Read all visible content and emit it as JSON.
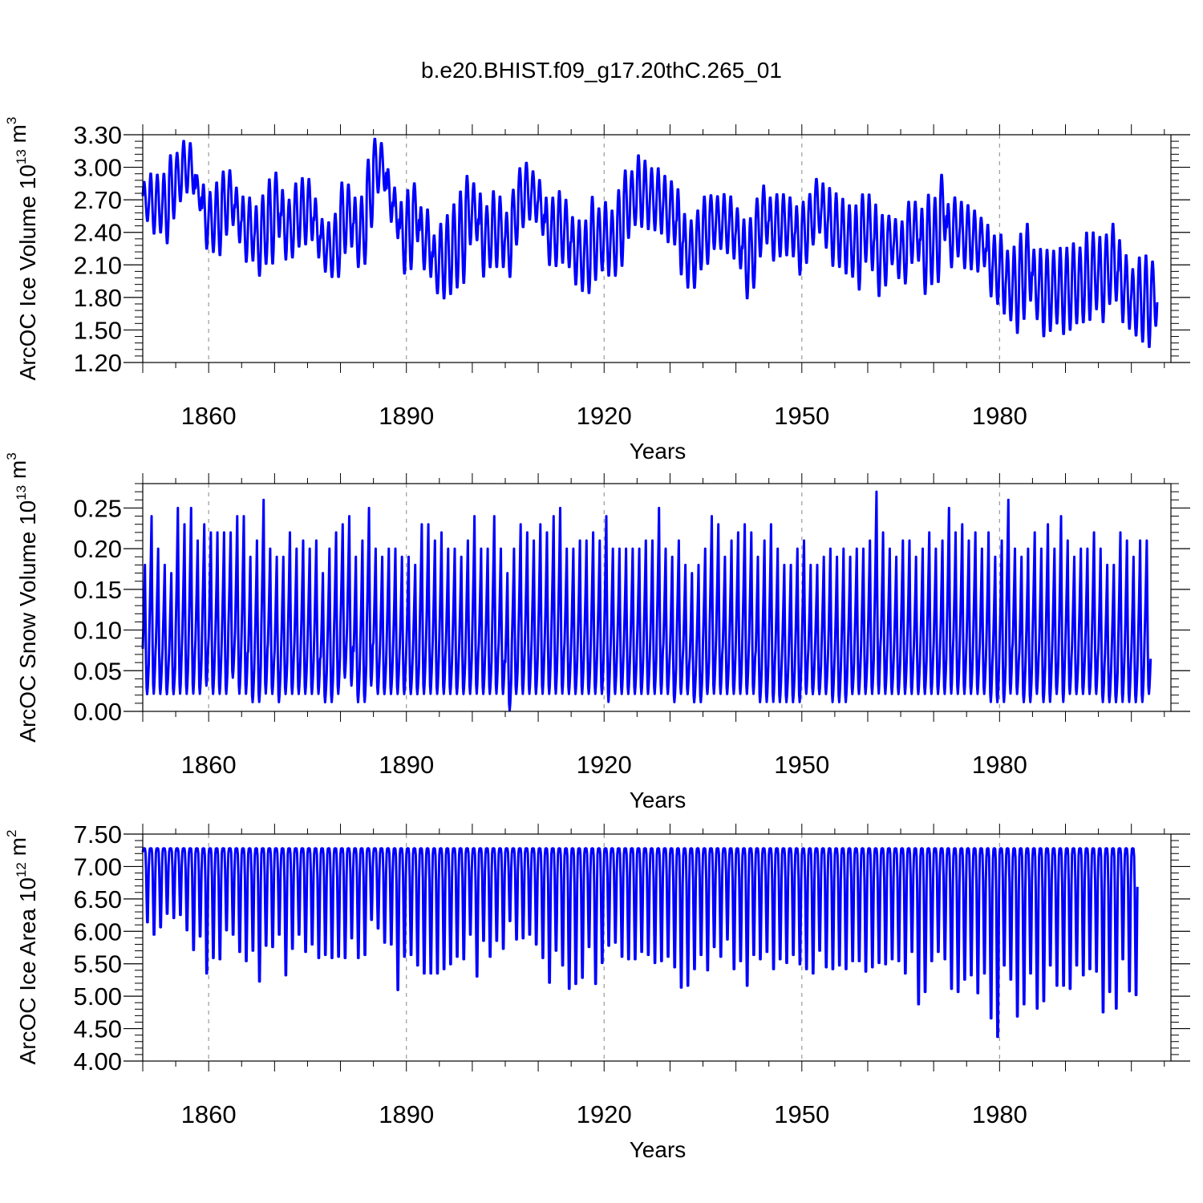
{
  "title": "b.e20.BHIST.f09_g17.20thC.265_01",
  "chart_data": [
    {
      "type": "line",
      "xlabel": "Years",
      "ylabel": {
        "prefix": "ArcOC Ice Volume 10",
        "exp": "13",
        "unit": " m",
        "unit_exp": "3"
      },
      "xlim": [
        1850,
        2006
      ],
      "ylim": [
        1.2,
        3.3
      ],
      "x_ticks": [
        "1860",
        "1890",
        "1920",
        "1950",
        "1980"
      ],
      "y_ticks": [
        "1.20",
        "1.50",
        "1.80",
        "2.10",
        "2.40",
        "2.70",
        "3.00",
        "3.30"
      ],
      "grid": "dashed vertical at major x ticks",
      "color": "#0000ff",
      "series": [
        {
          "monthly_seasonal_cycle": true,
          "annual_max": [
            2.87,
            2.95,
            2.94,
            2.95,
            3.12,
            3.14,
            3.25,
            3.23,
            2.93,
            2.85,
            2.78,
            2.87,
            2.97,
            2.98,
            2.82,
            2.74,
            2.73,
            2.65,
            2.75,
            2.9,
            2.96,
            2.8,
            2.71,
            2.86,
            2.91,
            2.9,
            2.72,
            2.53,
            2.5,
            2.58,
            2.87,
            2.85,
            2.73,
            2.74,
            3.08,
            3.27,
            3.23,
            2.99,
            2.82,
            2.69,
            2.8,
            2.86,
            2.64,
            2.62,
            2.38,
            2.49,
            2.57,
            2.67,
            2.79,
            2.93,
            2.86,
            2.77,
            2.65,
            2.79,
            2.74,
            2.59,
            2.8,
            3.0,
            3.05,
            2.97,
            2.89,
            2.73,
            2.73,
            2.79,
            2.71,
            2.55,
            2.52,
            2.52,
            2.74,
            2.63,
            2.69,
            2.61,
            2.8,
            2.98,
            2.97,
            3.12,
            3.07,
            3.0,
            3.0,
            2.93,
            2.88,
            2.81,
            2.58,
            2.52,
            2.61,
            2.74,
            2.75,
            2.74,
            2.76,
            2.74,
            2.63,
            2.53,
            2.54,
            2.72,
            2.84,
            2.73,
            2.76,
            2.76,
            2.73,
            2.65,
            2.69,
            2.76,
            2.9,
            2.86,
            2.82,
            2.77,
            2.72,
            2.66,
            2.66,
            2.76,
            2.76,
            2.67,
            2.57,
            2.56,
            2.53,
            2.51,
            2.69,
            2.69,
            2.63,
            2.76,
            2.73,
            2.94,
            2.67,
            2.73,
            2.69,
            2.66,
            2.61,
            2.54,
            2.48,
            2.38,
            2.39,
            2.24,
            2.28,
            2.4,
            2.49,
            2.25,
            2.26,
            2.25,
            2.24,
            2.27,
            2.27,
            2.31,
            2.27,
            2.41,
            2.41,
            2.37,
            2.39,
            2.49,
            2.34,
            2.2,
            2.07,
            2.18,
            2.2,
            2.14
          ],
          "annual_min": [
            2.5,
            2.38,
            2.39,
            2.29,
            2.52,
            2.68,
            2.76,
            2.75,
            2.6,
            2.24,
            2.21,
            2.18,
            2.37,
            2.46,
            2.3,
            2.12,
            2.13,
            1.99,
            2.1,
            2.1,
            2.35,
            2.14,
            2.16,
            2.26,
            2.28,
            2.32,
            2.16,
            2.03,
            1.98,
            1.98,
            2.2,
            2.26,
            2.07,
            2.1,
            2.44,
            2.76,
            2.78,
            2.49,
            2.34,
            2.01,
            2.05,
            2.31,
            2.05,
            1.98,
            1.83,
            1.78,
            1.82,
            1.88,
            1.92,
            2.28,
            2.32,
            1.98,
            2.07,
            2.07,
            2.07,
            1.98,
            2.28,
            2.44,
            2.51,
            2.49,
            2.37,
            2.09,
            2.08,
            2.11,
            2.07,
            1.91,
            1.85,
            1.83,
            1.95,
            2.04,
            1.99,
            1.99,
            2.08,
            2.34,
            2.46,
            2.44,
            2.42,
            2.41,
            2.38,
            2.3,
            2.28,
            2.0,
            1.88,
            1.88,
            2.05,
            2.1,
            2.24,
            2.24,
            2.2,
            2.15,
            2.06,
            1.78,
            1.88,
            2.17,
            2.29,
            2.13,
            2.17,
            2.18,
            2.17,
            2.0,
            2.11,
            2.28,
            2.39,
            2.25,
            2.08,
            2.07,
            2.01,
            1.98,
            1.86,
            2.12,
            2.04,
            1.8,
            1.9,
            2.1,
            1.97,
            1.92,
            2.11,
            2.13,
            1.82,
            1.91,
            1.93,
            2.32,
            2.07,
            2.17,
            2.06,
            2.05,
            2.03,
            2.08,
            1.8,
            1.73,
            1.64,
            1.58,
            1.46,
            1.59,
            1.76,
            1.59,
            1.43,
            1.48,
            1.55,
            1.45,
            1.49,
            1.55,
            1.56,
            1.58,
            1.68,
            1.56,
            1.73,
            1.76,
            1.56,
            1.5,
            1.44,
            1.38,
            1.33,
            1.53
          ]
        }
      ]
    },
    {
      "type": "line",
      "xlabel": "Years",
      "ylabel": {
        "prefix": "ArcOC Snow Volume 10",
        "exp": "13",
        "unit": " m",
        "unit_exp": "3"
      },
      "xlim": [
        1850,
        2006
      ],
      "ylim": [
        0.0,
        0.28
      ],
      "x_ticks": [
        "1860",
        "1890",
        "1920",
        "1950",
        "1980"
      ],
      "y_ticks": [
        "0.00",
        "0.05",
        "0.10",
        "0.15",
        "0.20",
        "0.25"
      ],
      "grid": "dashed vertical at major x ticks",
      "color": "#0000ff",
      "series": [
        {
          "monthly_seasonal_cycle": true,
          "annual_max": [
            0.18,
            0.24,
            0.2,
            0.18,
            0.17,
            0.25,
            0.23,
            0.25,
            0.21,
            0.23,
            0.22,
            0.22,
            0.22,
            0.22,
            0.24,
            0.24,
            0.19,
            0.21,
            0.26,
            0.2,
            0.19,
            0.19,
            0.22,
            0.2,
            0.21,
            0.2,
            0.21,
            0.17,
            0.2,
            0.22,
            0.23,
            0.24,
            0.19,
            0.21,
            0.25,
            0.2,
            0.19,
            0.2,
            0.2,
            0.19,
            0.19,
            0.18,
            0.23,
            0.23,
            0.21,
            0.22,
            0.2,
            0.2,
            0.19,
            0.21,
            0.24,
            0.2,
            0.2,
            0.24,
            0.2,
            0.17,
            0.2,
            0.23,
            0.22,
            0.21,
            0.23,
            0.22,
            0.24,
            0.25,
            0.2,
            0.2,
            0.21,
            0.21,
            0.22,
            0.21,
            0.24,
            0.2,
            0.2,
            0.2,
            0.2,
            0.2,
            0.21,
            0.21,
            0.25,
            0.2,
            0.19,
            0.21,
            0.18,
            0.17,
            0.18,
            0.2,
            0.24,
            0.23,
            0.19,
            0.21,
            0.22,
            0.23,
            0.22,
            0.19,
            0.21,
            0.23,
            0.2,
            0.18,
            0.18,
            0.2,
            0.21,
            0.18,
            0.18,
            0.19,
            0.2,
            0.19,
            0.2,
            0.19,
            0.2,
            0.2,
            0.21,
            0.27,
            0.22,
            0.2,
            0.19,
            0.21,
            0.21,
            0.19,
            0.2,
            0.22,
            0.2,
            0.21,
            0.25,
            0.22,
            0.23,
            0.21,
            0.22,
            0.2,
            0.22,
            0.19,
            0.21,
            0.26,
            0.2,
            0.19,
            0.2,
            0.22,
            0.2,
            0.23,
            0.2,
            0.24,
            0.21,
            0.19,
            0.2,
            0.2,
            0.22,
            0.2,
            0.18,
            0.18,
            0.22,
            0.21,
            0.19,
            0.21,
            0.21
          ],
          "annual_min": [
            0.02,
            0.02,
            0.02,
            0.02,
            0.02,
            0.02,
            0.02,
            0.02,
            0.02,
            0.03,
            0.02,
            0.02,
            0.02,
            0.04,
            0.02,
            0.02,
            0.01,
            0.01,
            0.02,
            0.02,
            0.01,
            0.02,
            0.02,
            0.02,
            0.02,
            0.02,
            0.02,
            0.01,
            0.01,
            0.02,
            0.04,
            0.03,
            0.01,
            0.01,
            0.03,
            0.02,
            0.02,
            0.02,
            0.02,
            0.02,
            0.02,
            0.02,
            0.02,
            0.02,
            0.02,
            0.02,
            0.02,
            0.02,
            0.02,
            0.02,
            0.02,
            0.02,
            0.02,
            0.02,
            0.02,
            0.0,
            0.02,
            0.02,
            0.02,
            0.02,
            0.02,
            0.02,
            0.02,
            0.02,
            0.02,
            0.02,
            0.02,
            0.02,
            0.02,
            0.02,
            0.01,
            0.02,
            0.02,
            0.02,
            0.02,
            0.02,
            0.02,
            0.02,
            0.02,
            0.02,
            0.01,
            0.02,
            0.02,
            0.01,
            0.01,
            0.02,
            0.02,
            0.02,
            0.02,
            0.02,
            0.02,
            0.02,
            0.02,
            0.01,
            0.01,
            0.01,
            0.01,
            0.01,
            0.01,
            0.01,
            0.02,
            0.02,
            0.02,
            0.02,
            0.01,
            0.01,
            0.01,
            0.02,
            0.02,
            0.02,
            0.02,
            0.02,
            0.02,
            0.02,
            0.02,
            0.02,
            0.02,
            0.02,
            0.02,
            0.02,
            0.02,
            0.02,
            0.02,
            0.02,
            0.02,
            0.02,
            0.02,
            0.02,
            0.01,
            0.01,
            0.01,
            0.02,
            0.02,
            0.01,
            0.01,
            0.02,
            0.01,
            0.01,
            0.02,
            0.01,
            0.02,
            0.02,
            0.02,
            0.02,
            0.02,
            0.01,
            0.01,
            0.01,
            0.01,
            0.01,
            0.01,
            0.01,
            0.02
          ]
        }
      ]
    },
    {
      "type": "line",
      "xlabel": "Years",
      "ylabel": {
        "prefix": "ArcOC Ice Area 10",
        "exp": "12",
        "unit": " m",
        "unit_exp": "2"
      },
      "xlim": [
        1850,
        2006
      ],
      "ylim": [
        4.0,
        7.5
      ],
      "x_ticks": [
        "1860",
        "1890",
        "1920",
        "1950",
        "1980"
      ],
      "y_ticks": [
        "4.00",
        "4.50",
        "5.00",
        "5.50",
        "6.00",
        "6.50",
        "7.00",
        "7.50"
      ],
      "grid": "dashed vertical at major x ticks",
      "color": "#0000ff",
      "series": [
        {
          "monthly_seasonal_cycle": true,
          "annual_max_constant": 7.28,
          "annual_min": [
            6.08,
            5.88,
            6.0,
            6.22,
            6.15,
            6.2,
            5.95,
            5.63,
            5.85,
            5.25,
            5.5,
            5.48,
            5.95,
            5.88,
            5.6,
            5.45,
            5.62,
            5.12,
            5.7,
            5.68,
            5.88,
            5.22,
            5.65,
            5.88,
            5.6,
            5.72,
            5.5,
            5.55,
            5.5,
            5.52,
            5.5,
            5.82,
            5.5,
            5.55,
            6.12,
            5.98,
            5.75,
            5.72,
            4.98,
            5.52,
            5.55,
            5.38,
            5.25,
            5.25,
            5.25,
            5.32,
            5.4,
            5.52,
            5.48,
            5.88,
            5.2,
            5.78,
            5.52,
            5.78,
            5.65,
            6.1,
            5.8,
            5.82,
            5.88,
            5.72,
            5.5,
            5.1,
            5.62,
            5.38,
            5.0,
            5.08,
            5.18,
            5.68,
            5.08,
            5.42,
            5.7,
            5.75,
            5.52,
            5.48,
            5.48,
            5.6,
            5.55,
            5.42,
            5.45,
            5.52,
            5.35,
            5.02,
            5.05,
            5.32,
            5.55,
            5.3,
            5.68,
            5.52,
            5.8,
            5.32,
            5.45,
            5.05,
            5.55,
            5.48,
            5.6,
            5.32,
            5.48,
            5.42,
            5.55,
            5.4,
            5.32,
            5.25,
            5.62,
            5.35,
            5.32,
            5.38,
            5.32,
            5.45,
            5.45,
            5.28,
            5.35,
            5.42,
            5.4,
            5.48,
            5.45,
            5.25,
            5.6,
            4.75,
            4.95,
            5.45,
            5.6,
            5.48,
            5.0,
            4.95,
            5.15,
            5.22,
            4.93,
            5.25,
            4.52,
            4.22,
            5.38,
            5.15,
            4.55,
            4.75,
            5.25,
            4.68,
            4.8,
            5.38,
            5.05,
            5.05,
            5.0,
            5.38,
            5.22,
            5.32,
            5.28,
            4.62,
            4.95,
            4.68,
            5.48,
            4.96,
            4.9
          ]
        }
      ]
    }
  ]
}
